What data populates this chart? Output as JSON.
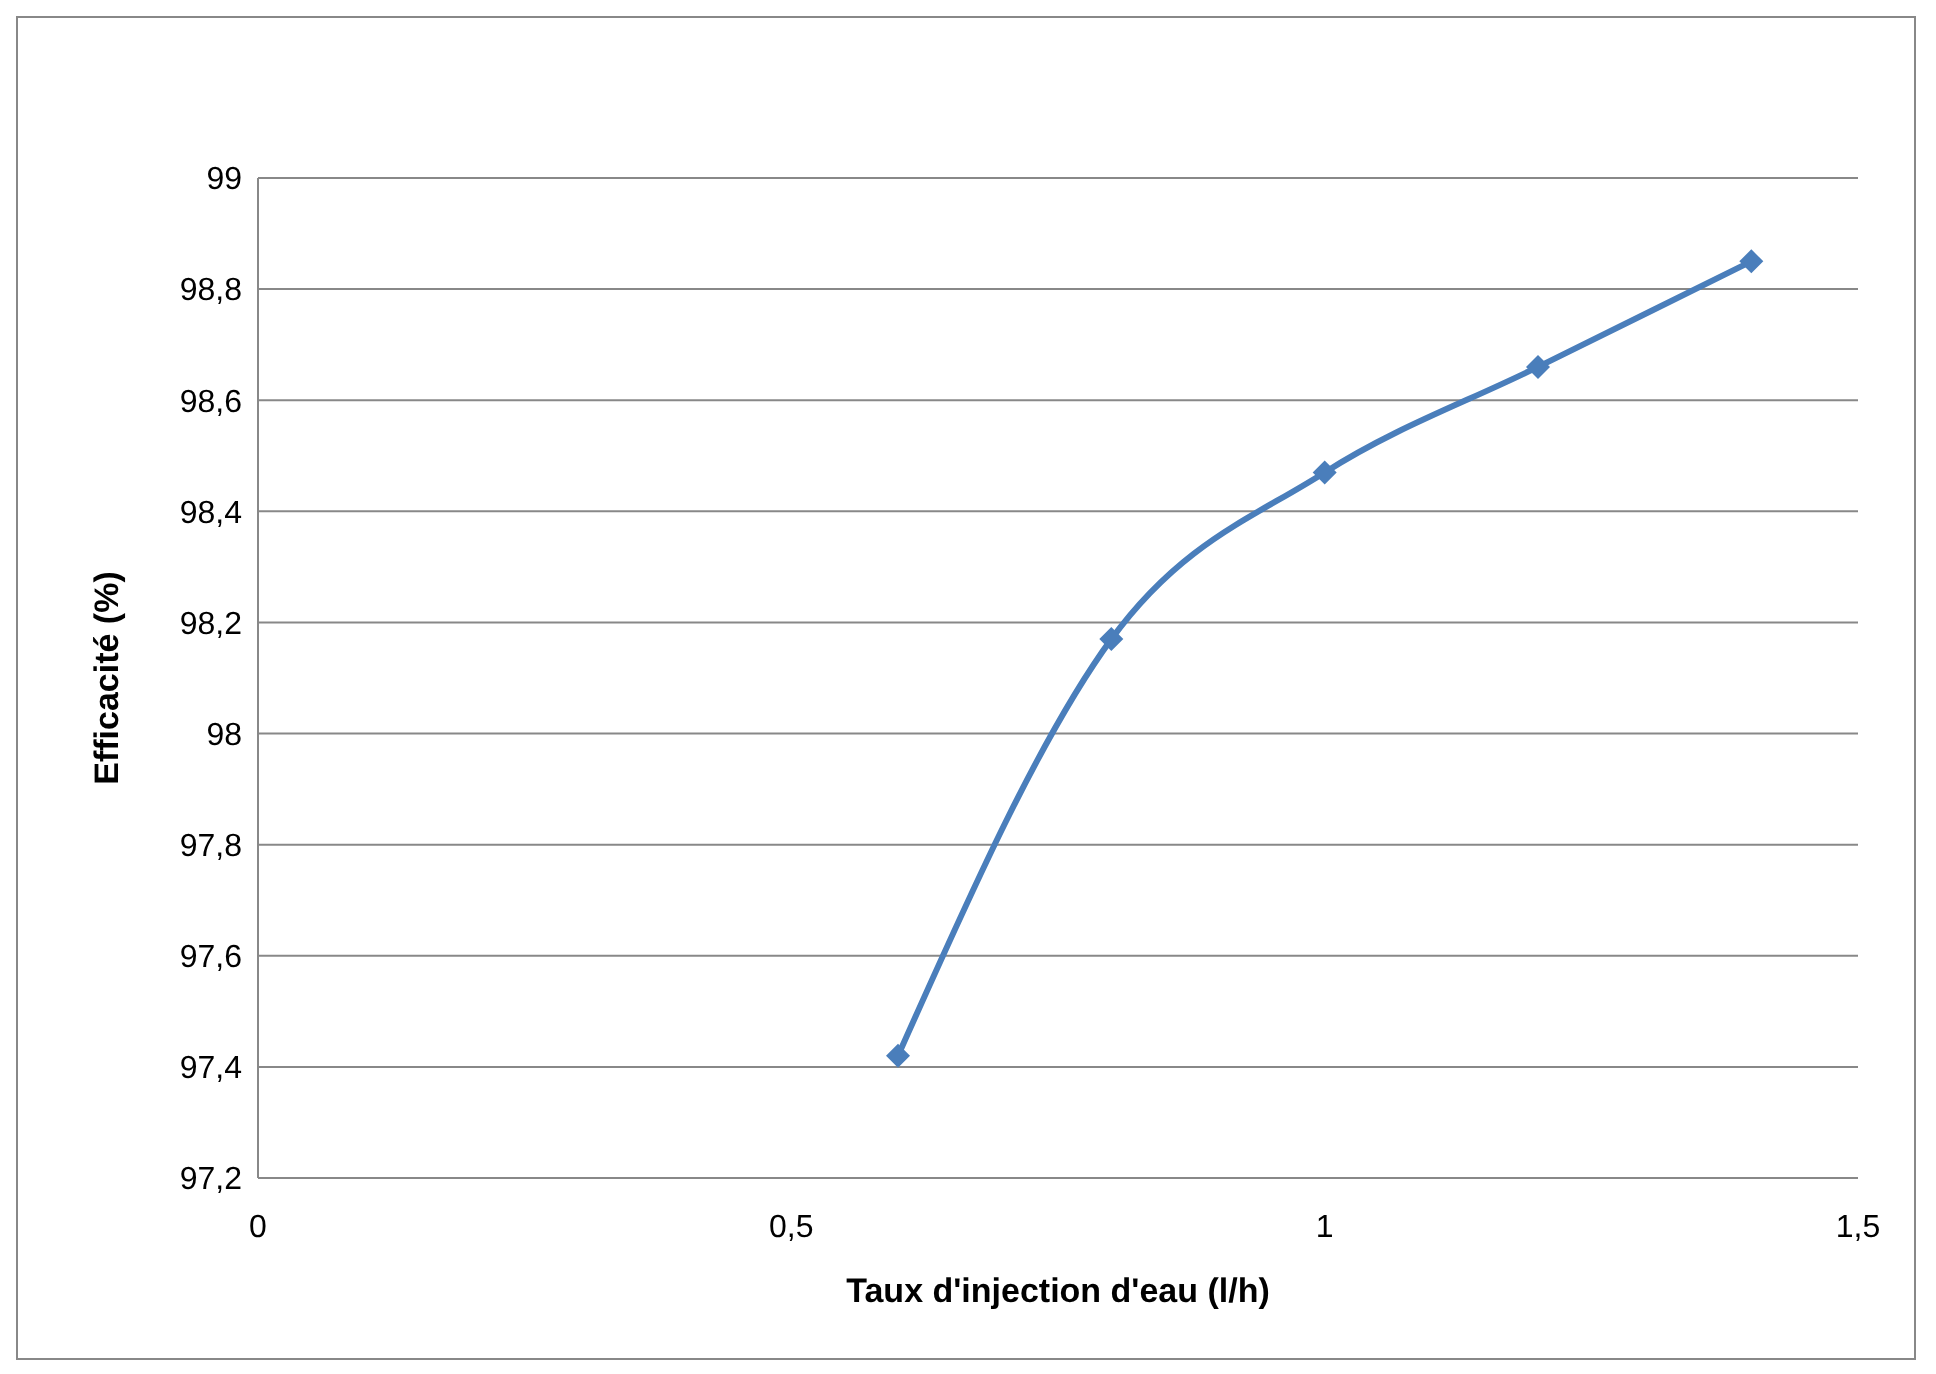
{
  "chart_data": {
    "type": "line",
    "xlabel": "Taux d'injection d'eau (l/h)",
    "ylabel": "Efficacité (%)",
    "x": [
      0.6,
      0.8,
      1,
      1.2,
      1.4
    ],
    "series": [
      {
        "color": "#4a7ebb",
        "values": [
          97.42,
          98.17,
          98.47,
          98.66,
          98.85
        ]
      }
    ],
    "xlim": [
      0,
      1.5
    ],
    "xticks": [
      0,
      {
        "value": 0.5,
        "label": "0,5"
      },
      1,
      {
        "value": 1.5,
        "label": "1,5"
      }
    ],
    "ylim": [
      97.2,
      99
    ],
    "yticks": [
      {
        "value": 97.2,
        "label": "97,2"
      },
      {
        "value": 97.4,
        "label": "97,4"
      },
      {
        "value": 97.6,
        "label": "97,6"
      },
      {
        "value": 97.8,
        "label": "97,8"
      },
      98,
      {
        "value": 98.2,
        "label": "98,2"
      },
      {
        "value": 98.4,
        "label": "98,4"
      },
      {
        "value": 98.6,
        "label": "98,6"
      },
      {
        "value": 98.8,
        "label": "98,8"
      },
      99
    ],
    "grid": "y",
    "marker": "diamond",
    "line_style": "solid",
    "legend": false
  }
}
